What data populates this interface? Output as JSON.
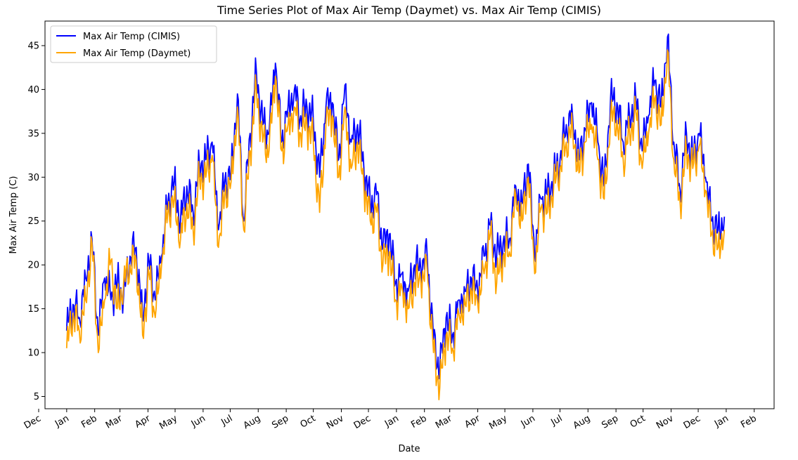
{
  "chart_data": {
    "type": "line",
    "title": "Time Series Plot of Max Air Temp (Daymet) vs. Max Air Temp (CIMIS)",
    "xlabel": "Date",
    "ylabel": "Max Air Temp (C)",
    "x_ticks": [
      "Dec",
      "Jan",
      "Feb",
      "Mar",
      "Apr",
      "May",
      "Jun",
      "Jul",
      "Aug",
      "Sep",
      "Oct",
      "Nov",
      "Dec",
      "Jan",
      "Feb",
      "Mar",
      "Apr",
      "May",
      "Jun",
      "Jul",
      "Aug",
      "Sep",
      "Oct",
      "Nov",
      "Dec",
      "Jan",
      "Feb"
    ],
    "y_ticks": [
      5,
      10,
      15,
      20,
      25,
      30,
      35,
      40,
      45
    ],
    "ylim": [
      3.6,
      47.8
    ],
    "xlim": [
      "2017-12-08",
      "2020-02-23"
    ],
    "grid": false,
    "legend_position": "top-left",
    "series": [
      {
        "name": "Max Air Temp (CIMIS)",
        "color": "#0000ff",
        "x": [
          "2018-01-01",
          "2018-01-08",
          "2018-01-15",
          "2018-01-22",
          "2018-01-29",
          "2018-02-05",
          "2018-02-12",
          "2018-02-19",
          "2018-02-26",
          "2018-03-05",
          "2018-03-12",
          "2018-03-19",
          "2018-03-26",
          "2018-04-02",
          "2018-04-09",
          "2018-04-16",
          "2018-04-23",
          "2018-04-30",
          "2018-05-07",
          "2018-05-14",
          "2018-05-21",
          "2018-05-28",
          "2018-06-04",
          "2018-06-11",
          "2018-06-18",
          "2018-06-25",
          "2018-07-02",
          "2018-07-09",
          "2018-07-16",
          "2018-07-23",
          "2018-07-30",
          "2018-08-06",
          "2018-08-13",
          "2018-08-20",
          "2018-08-27",
          "2018-09-03",
          "2018-09-10",
          "2018-09-17",
          "2018-09-24",
          "2018-10-01",
          "2018-10-08",
          "2018-10-15",
          "2018-10-22",
          "2018-10-29",
          "2018-11-05",
          "2018-11-12",
          "2018-11-19",
          "2018-11-26",
          "2018-12-03",
          "2018-12-10",
          "2018-12-17",
          "2018-12-24",
          "2018-12-31",
          "2019-01-07",
          "2019-01-14",
          "2019-01-21",
          "2019-01-28",
          "2019-02-04",
          "2019-02-11",
          "2019-02-18",
          "2019-02-25",
          "2019-03-04",
          "2019-03-11",
          "2019-03-18",
          "2019-03-25",
          "2019-04-01",
          "2019-04-08",
          "2019-04-15",
          "2019-04-22",
          "2019-04-29",
          "2019-05-06",
          "2019-05-13",
          "2019-05-20",
          "2019-05-27",
          "2019-06-03",
          "2019-06-10",
          "2019-06-17",
          "2019-06-24",
          "2019-07-01",
          "2019-07-08",
          "2019-07-15",
          "2019-07-22",
          "2019-07-29",
          "2019-08-05",
          "2019-08-12",
          "2019-08-19",
          "2019-08-26",
          "2019-09-02",
          "2019-09-09",
          "2019-09-16",
          "2019-09-23",
          "2019-09-30",
          "2019-10-07",
          "2019-10-14",
          "2019-10-21",
          "2019-10-28",
          "2019-11-04",
          "2019-11-11",
          "2019-11-18",
          "2019-11-25",
          "2019-12-02",
          "2019-12-09",
          "2019-12-16",
          "2019-12-23",
          "2019-12-30"
        ],
        "values": [
          12.5,
          15.5,
          14.0,
          18.5,
          23.0,
          12.0,
          18.5,
          16.0,
          18.0,
          16.5,
          21.0,
          22.0,
          14.0,
          20.5,
          16.0,
          21.0,
          27.0,
          29.5,
          25.0,
          29.0,
          26.0,
          31.5,
          32.0,
          34.0,
          24.0,
          29.5,
          30.5,
          39.5,
          25.0,
          35.0,
          42.0,
          36.0,
          35.0,
          43.0,
          34.0,
          38.0,
          40.0,
          37.0,
          38.0,
          36.5,
          30.0,
          38.0,
          38.5,
          32.0,
          40.5,
          34.0,
          36.0,
          31.0,
          27.0,
          28.0,
          22.0,
          23.5,
          18.0,
          19.0,
          17.0,
          20.0,
          19.5,
          21.0,
          11.5,
          8.0,
          14.0,
          12.0,
          16.0,
          17.0,
          18.5,
          17.0,
          21.0,
          24.5,
          21.0,
          22.5,
          23.0,
          29.0,
          27.0,
          31.5,
          21.0,
          27.5,
          28.0,
          30.0,
          32.0,
          36.0,
          37.0,
          32.0,
          35.5,
          38.5,
          34.0,
          29.0,
          39.0,
          38.5,
          34.0,
          37.0,
          39.0,
          33.0,
          37.0,
          41.0,
          38.0,
          46.0,
          34.0,
          28.5,
          35.0,
          32.0,
          35.0,
          30.0,
          25.0,
          24.0,
          25.5
        ]
      },
      {
        "name": "Max Air Temp (Daymet)",
        "color": "#ffa500",
        "x": [
          "2018-01-01",
          "2018-01-08",
          "2018-01-15",
          "2018-01-22",
          "2018-01-29",
          "2018-02-05",
          "2018-02-12",
          "2018-02-19",
          "2018-02-26",
          "2018-03-05",
          "2018-03-12",
          "2018-03-19",
          "2018-03-26",
          "2018-04-02",
          "2018-04-09",
          "2018-04-16",
          "2018-04-23",
          "2018-04-30",
          "2018-05-07",
          "2018-05-14",
          "2018-05-21",
          "2018-05-28",
          "2018-06-04",
          "2018-06-11",
          "2018-06-18",
          "2018-06-25",
          "2018-07-02",
          "2018-07-09",
          "2018-07-16",
          "2018-07-23",
          "2018-07-30",
          "2018-08-06",
          "2018-08-13",
          "2018-08-20",
          "2018-08-27",
          "2018-09-03",
          "2018-09-10",
          "2018-09-17",
          "2018-09-24",
          "2018-10-01",
          "2018-10-08",
          "2018-10-15",
          "2018-10-22",
          "2018-10-29",
          "2018-11-05",
          "2018-11-12",
          "2018-11-19",
          "2018-11-26",
          "2018-12-03",
          "2018-12-10",
          "2018-12-17",
          "2018-12-24",
          "2018-12-31",
          "2019-01-07",
          "2019-01-14",
          "2019-01-21",
          "2019-01-28",
          "2019-02-04",
          "2019-02-11",
          "2019-02-18",
          "2019-02-25",
          "2019-03-04",
          "2019-03-11",
          "2019-03-18",
          "2019-03-25",
          "2019-04-01",
          "2019-04-08",
          "2019-04-15",
          "2019-04-22",
          "2019-04-29",
          "2019-05-06",
          "2019-05-13",
          "2019-05-20",
          "2019-05-27",
          "2019-06-03",
          "2019-06-10",
          "2019-06-17",
          "2019-06-24",
          "2019-07-01",
          "2019-07-08",
          "2019-07-15",
          "2019-07-22",
          "2019-07-29",
          "2019-08-05",
          "2019-08-12",
          "2019-08-19",
          "2019-08-26",
          "2019-09-02",
          "2019-09-09",
          "2019-09-16",
          "2019-09-23",
          "2019-09-30",
          "2019-10-07",
          "2019-10-14",
          "2019-10-21",
          "2019-10-28",
          "2019-11-04",
          "2019-11-11",
          "2019-11-18",
          "2019-11-25",
          "2019-12-02",
          "2019-12-09",
          "2019-12-16",
          "2019-12-23",
          "2019-12-30"
        ],
        "values": [
          10.5,
          14.5,
          12.5,
          16.0,
          22.5,
          10.0,
          16.0,
          20.5,
          15.0,
          18.0,
          20.0,
          20.5,
          12.0,
          19.0,
          14.0,
          20.0,
          26.0,
          27.5,
          23.0,
          27.0,
          24.0,
          30.0,
          30.0,
          32.5,
          22.0,
          28.0,
          29.5,
          38.0,
          24.0,
          33.0,
          40.0,
          34.0,
          33.0,
          41.5,
          33.0,
          36.0,
          38.0,
          35.0,
          36.0,
          34.0,
          26.0,
          36.0,
          37.0,
          30.0,
          38.0,
          31.0,
          34.0,
          29.0,
          25.0,
          26.0,
          20.0,
          21.5,
          16.0,
          17.5,
          15.0,
          18.0,
          18.0,
          19.5,
          10.0,
          6.0,
          12.0,
          10.5,
          14.5,
          15.5,
          17.0,
          15.5,
          19.0,
          23.5,
          18.0,
          21.0,
          21.5,
          28.0,
          25.0,
          30.0,
          19.0,
          26.5,
          26.0,
          29.0,
          31.0,
          34.0,
          35.5,
          30.5,
          34.0,
          36.0,
          32.0,
          27.5,
          37.0,
          36.5,
          32.0,
          35.0,
          37.5,
          31.0,
          35.0,
          39.0,
          36.0,
          44.5,
          32.0,
          27.0,
          33.0,
          31.0,
          33.5,
          28.5,
          23.5,
          22.0,
          24.0
        ]
      }
    ]
  }
}
